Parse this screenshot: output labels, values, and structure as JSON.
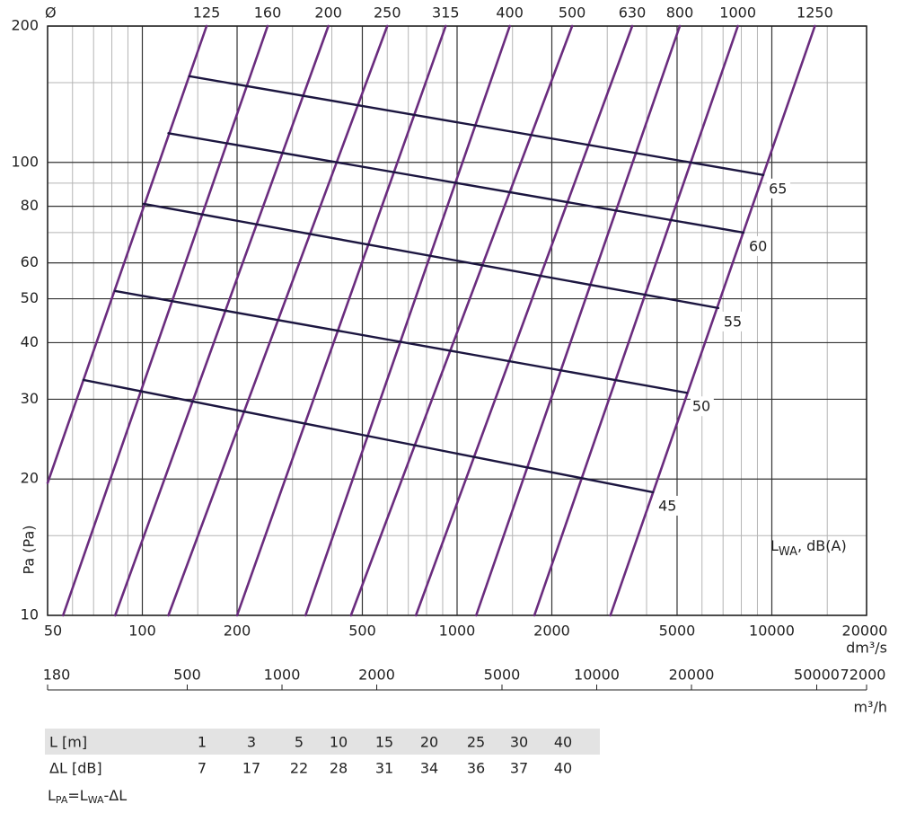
{
  "chart_data": {
    "type": "line",
    "diameter_label": "Ø",
    "y_label": "Pa (Pa)",
    "x_label": "dm³/s",
    "x2_label": "m³/h",
    "annotation": {
      "base": "L",
      "sub": "WA",
      "rest": ", dB(A)"
    },
    "log_x": true,
    "log_y": true,
    "grid": true,
    "xlim": [
      50,
      20000
    ],
    "xticks": [
      50,
      100,
      200,
      500,
      1000,
      2000,
      5000,
      10000,
      20000
    ],
    "x_minor_ticks": [
      60,
      70,
      80,
      90,
      150,
      300,
      400,
      600,
      700,
      800,
      900,
      1500,
      3000,
      4000,
      6000,
      7000,
      8000,
      9000,
      15000
    ],
    "ylim": [
      10,
      200
    ],
    "yticks": [
      10,
      20,
      30,
      40,
      50,
      60,
      80,
      100,
      200
    ],
    "y_minor_ticks": [
      15,
      70,
      90,
      150
    ],
    "x2lim": [
      180,
      72000
    ],
    "x2ticks": [
      180,
      500,
      1000,
      2000,
      5000,
      10000,
      20000,
      50000,
      72000
    ],
    "series": [
      {
        "name": "125",
        "color": "#6a2c7e",
        "x": [
          50,
          160
        ],
        "y": [
          19.6,
          200
        ]
      },
      {
        "name": "160",
        "color": "#6a2c7e",
        "x": [
          56,
          250
        ],
        "y": [
          10,
          200
        ]
      },
      {
        "name": "200",
        "color": "#6a2c7e",
        "x": [
          82,
          390
        ],
        "y": [
          10,
          200
        ]
      },
      {
        "name": "250",
        "color": "#6a2c7e",
        "x": [
          121,
          600
        ],
        "y": [
          10,
          200
        ]
      },
      {
        "name": "315",
        "color": "#6a2c7e",
        "x": [
          200,
          920
        ],
        "y": [
          10,
          200
        ]
      },
      {
        "name": "400",
        "color": "#6a2c7e",
        "x": [
          330,
          1470
        ],
        "y": [
          10,
          200
        ]
      },
      {
        "name": "500",
        "color": "#6a2c7e",
        "x": [
          460,
          2320
        ],
        "y": [
          10,
          200
        ]
      },
      {
        "name": "630",
        "color": "#6a2c7e",
        "x": [
          740,
          3600
        ],
        "y": [
          10,
          200
        ]
      },
      {
        "name": "800",
        "color": "#6a2c7e",
        "x": [
          1150,
          5100
        ],
        "y": [
          10,
          200
        ]
      },
      {
        "name": "1000",
        "color": "#6a2c7e",
        "x": [
          1760,
          7800
        ],
        "y": [
          10,
          200
        ]
      },
      {
        "name": "1250",
        "color": "#6a2c7e",
        "x": [
          3070,
          13700
        ],
        "y": [
          10,
          200
        ]
      }
    ],
    "level_series": [
      {
        "name": "45",
        "color": "#1c1640",
        "x": [
          65,
          4190
        ],
        "y": [
          33.1,
          18.7
        ]
      },
      {
        "name": "50",
        "color": "#1c1640",
        "x": [
          82,
          5370
        ],
        "y": [
          52,
          31
        ]
      },
      {
        "name": "55",
        "color": "#1c1640",
        "x": [
          101,
          6760
        ],
        "y": [
          81,
          47.7
        ]
      },
      {
        "name": "60",
        "color": "#1c1640",
        "x": [
          121,
          8130
        ],
        "y": [
          116,
          70
        ]
      },
      {
        "name": "65",
        "color": "#1c1640",
        "x": [
          141,
          9400
        ],
        "y": [
          155,
          93.8
        ]
      }
    ]
  },
  "table": {
    "rows": [
      [
        "L [m]",
        1,
        3,
        5,
        10,
        15,
        20,
        25,
        30,
        40
      ],
      [
        "ΔL [dB]",
        7,
        17,
        22,
        28,
        31,
        34,
        36,
        37,
        40
      ]
    ]
  },
  "formula": [
    {
      "text": "L",
      "sub": false
    },
    {
      "text": "PA",
      "sub": true
    },
    {
      "text": "=L",
      "sub": false
    },
    {
      "text": "WA",
      "sub": true
    },
    {
      "text": "-ΔL",
      "sub": false
    }
  ]
}
